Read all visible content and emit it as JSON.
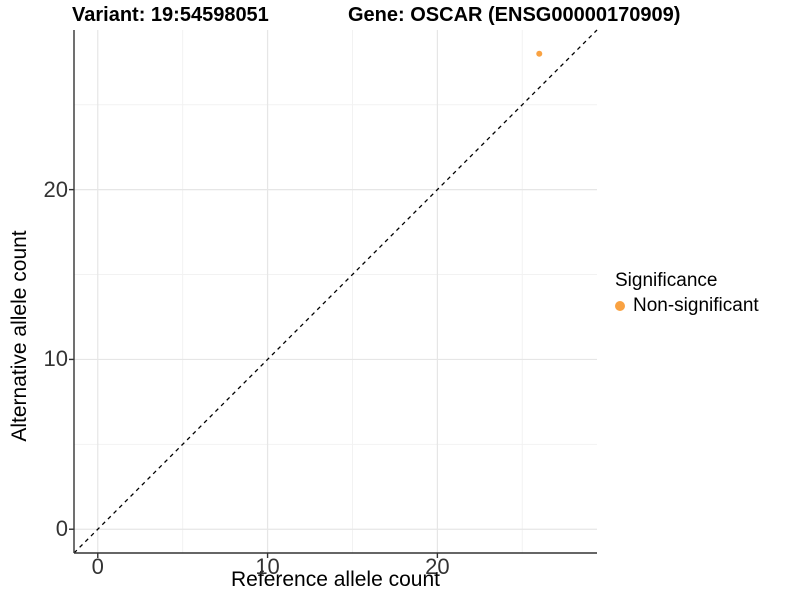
{
  "chart_data": {
    "type": "scatter",
    "title_left": "Variant: 19:54598051",
    "title_right": "Gene: OSCAR (ENSG00000170909)",
    "xlabel": "Reference allele count",
    "ylabel": "Alternative allele count",
    "xlim": [
      -1.4,
      29.4
    ],
    "ylim": [
      -1.4,
      29.4
    ],
    "x_ticks": [
      0,
      10,
      20
    ],
    "y_ticks": [
      0,
      10,
      20
    ],
    "x_minor_gridlines": [
      5,
      15,
      25
    ],
    "y_minor_gridlines": [
      5,
      15,
      25
    ],
    "grid": "on",
    "legend_position": "right",
    "identity_line": {
      "style": "dashed",
      "color": "#000000",
      "from": -1.4,
      "to": 29.4
    },
    "series": [
      {
        "name": "Non-significant",
        "color": "#F9A242",
        "point_radius": 3,
        "points": [
          {
            "x": 26,
            "y": 28
          }
        ]
      }
    ],
    "legend": {
      "title": "Significance",
      "entries": [
        {
          "label": "Non-significant",
          "color": "#F9A242"
        }
      ]
    }
  },
  "colors": {
    "axis_line": "#333333",
    "tick_mark": "#333333",
    "grid_major": "#E6E6E6",
    "grid_minor": "#F2F2F2",
    "background": "#FFFFFF"
  }
}
